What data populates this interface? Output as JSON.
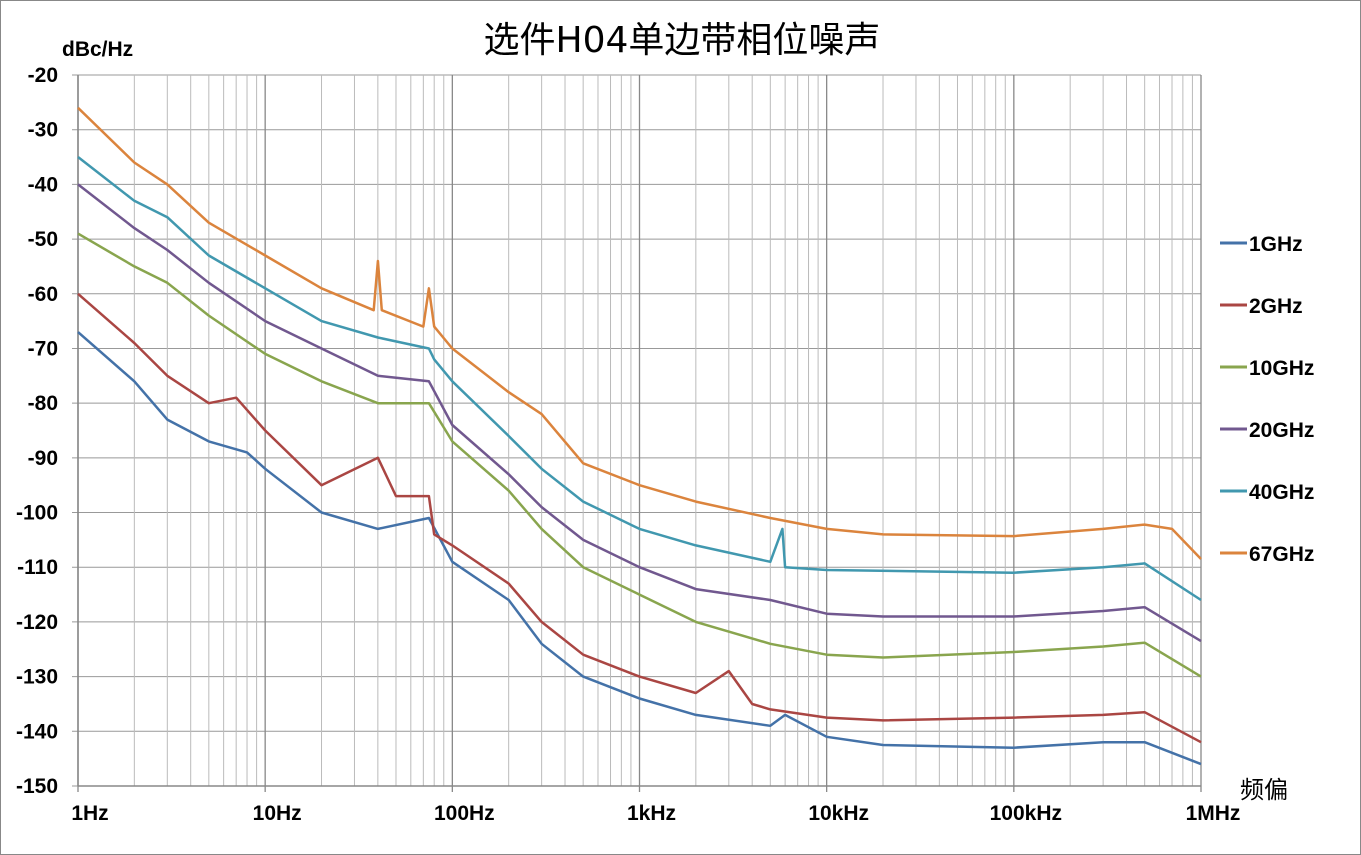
{
  "chart_data": {
    "type": "line",
    "title": "选件H04单边带相位噪声",
    "ylabel": "dBc/Hz",
    "xlabel": "频偏",
    "x_scale": "log",
    "xlim": [
      1,
      1000000
    ],
    "ylim": [
      -150,
      -20
    ],
    "grid": true,
    "legend_position": "right",
    "x_ticks": [
      {
        "value": 1,
        "label": "1Hz"
      },
      {
        "value": 10,
        "label": "10Hz"
      },
      {
        "value": 100,
        "label": "100Hz"
      },
      {
        "value": 1000,
        "label": "1kHz"
      },
      {
        "value": 10000,
        "label": "10kHz"
      },
      {
        "value": 100000,
        "label": "100kHz"
      },
      {
        "value": 1000000,
        "label": "1MHz"
      }
    ],
    "y_ticks": [
      "-20",
      "-30",
      "-40",
      "-50",
      "-60",
      "-70",
      "-80",
      "-90",
      "-100",
      "-110",
      "-120",
      "-130",
      "-140",
      "-150"
    ],
    "series": [
      {
        "name": "1GHz",
        "color": "#4472a8",
        "points": [
          [
            1,
            -67
          ],
          [
            2,
            -76
          ],
          [
            3,
            -83
          ],
          [
            5,
            -87
          ],
          [
            8,
            -89
          ],
          [
            10,
            -92
          ],
          [
            20,
            -100
          ],
          [
            40,
            -103
          ],
          [
            75,
            -101
          ],
          [
            100,
            -109
          ],
          [
            200,
            -116
          ],
          [
            300,
            -124
          ],
          [
            500,
            -130
          ],
          [
            1000,
            -134
          ],
          [
            2000,
            -137
          ],
          [
            5000,
            -139
          ],
          [
            6000,
            -137
          ],
          [
            10000,
            -141
          ],
          [
            20000,
            -142.5
          ],
          [
            100000,
            -143
          ],
          [
            300000,
            -142
          ],
          [
            500000,
            -142
          ],
          [
            1000000,
            -146
          ]
        ]
      },
      {
        "name": "2GHz",
        "color": "#aa4643",
        "points": [
          [
            1,
            -60
          ],
          [
            2,
            -69
          ],
          [
            3,
            -75
          ],
          [
            5,
            -80
          ],
          [
            7,
            -79
          ],
          [
            10,
            -85
          ],
          [
            20,
            -95
          ],
          [
            40,
            -90
          ],
          [
            50,
            -97
          ],
          [
            75,
            -97
          ],
          [
            80,
            -104
          ],
          [
            100,
            -106
          ],
          [
            200,
            -113
          ],
          [
            300,
            -120
          ],
          [
            500,
            -126
          ],
          [
            1000,
            -130
          ],
          [
            2000,
            -133
          ],
          [
            3000,
            -129
          ],
          [
            4000,
            -135
          ],
          [
            5000,
            -136
          ],
          [
            10000,
            -137.5
          ],
          [
            20000,
            -138
          ],
          [
            100000,
            -137.5
          ],
          [
            300000,
            -137
          ],
          [
            500000,
            -136.5
          ],
          [
            1000000,
            -142
          ]
        ]
      },
      {
        "name": "10GHz",
        "color": "#89a54e",
        "points": [
          [
            1,
            -49
          ],
          [
            2,
            -55
          ],
          [
            3,
            -58
          ],
          [
            5,
            -64
          ],
          [
            10,
            -71
          ],
          [
            20,
            -76
          ],
          [
            40,
            -80
          ],
          [
            75,
            -80
          ],
          [
            100,
            -87
          ],
          [
            200,
            -96
          ],
          [
            300,
            -103
          ],
          [
            500,
            -110
          ],
          [
            1000,
            -115
          ],
          [
            2000,
            -120
          ],
          [
            5000,
            -124
          ],
          [
            10000,
            -126
          ],
          [
            20000,
            -126.5
          ],
          [
            100000,
            -125.5
          ],
          [
            300000,
            -124.5
          ],
          [
            500000,
            -123.8
          ],
          [
            1000000,
            -130
          ]
        ]
      },
      {
        "name": "20GHz",
        "color": "#71588f",
        "points": [
          [
            1,
            -40
          ],
          [
            2,
            -48
          ],
          [
            3,
            -52
          ],
          [
            5,
            -58
          ],
          [
            10,
            -65
          ],
          [
            20,
            -70
          ],
          [
            40,
            -75
          ],
          [
            75,
            -76
          ],
          [
            100,
            -84
          ],
          [
            200,
            -93
          ],
          [
            300,
            -99
          ],
          [
            500,
            -105
          ],
          [
            1000,
            -110
          ],
          [
            2000,
            -114
          ],
          [
            5000,
            -116
          ],
          [
            10000,
            -118.5
          ],
          [
            20000,
            -119
          ],
          [
            100000,
            -119
          ],
          [
            300000,
            -118
          ],
          [
            500000,
            -117.3
          ],
          [
            1000000,
            -123.5
          ]
        ]
      },
      {
        "name": "40GHz",
        "color": "#4198af",
        "points": [
          [
            1,
            -35
          ],
          [
            2,
            -43
          ],
          [
            3,
            -46
          ],
          [
            5,
            -53
          ],
          [
            10,
            -59
          ],
          [
            20,
            -65
          ],
          [
            40,
            -68
          ],
          [
            75,
            -70
          ],
          [
            80,
            -72
          ],
          [
            100,
            -76
          ],
          [
            200,
            -86
          ],
          [
            300,
            -92
          ],
          [
            500,
            -98
          ],
          [
            1000,
            -103
          ],
          [
            2000,
            -106
          ],
          [
            5000,
            -109
          ],
          [
            5800,
            -103
          ],
          [
            6000,
            -110
          ],
          [
            10000,
            -110.5
          ],
          [
            100000,
            -111
          ],
          [
            300000,
            -110
          ],
          [
            500000,
            -109.3
          ],
          [
            1000000,
            -116
          ]
        ]
      },
      {
        "name": "67GHz",
        "color": "#db843d",
        "points": [
          [
            1,
            -26
          ],
          [
            2,
            -36
          ],
          [
            3,
            -40
          ],
          [
            5,
            -47
          ],
          [
            10,
            -53
          ],
          [
            20,
            -59
          ],
          [
            38,
            -63
          ],
          [
            40,
            -54
          ],
          [
            42,
            -63
          ],
          [
            70,
            -66
          ],
          [
            75,
            -59
          ],
          [
            80,
            -66
          ],
          [
            100,
            -70
          ],
          [
            200,
            -78
          ],
          [
            300,
            -82
          ],
          [
            500,
            -91
          ],
          [
            1000,
            -95
          ],
          [
            2000,
            -98
          ],
          [
            5000,
            -101
          ],
          [
            10000,
            -103
          ],
          [
            20000,
            -104
          ],
          [
            100000,
            -104.3
          ],
          [
            300000,
            -103
          ],
          [
            500000,
            -102.2
          ],
          [
            700000,
            -103
          ],
          [
            1000000,
            -108.5
          ]
        ]
      }
    ]
  }
}
